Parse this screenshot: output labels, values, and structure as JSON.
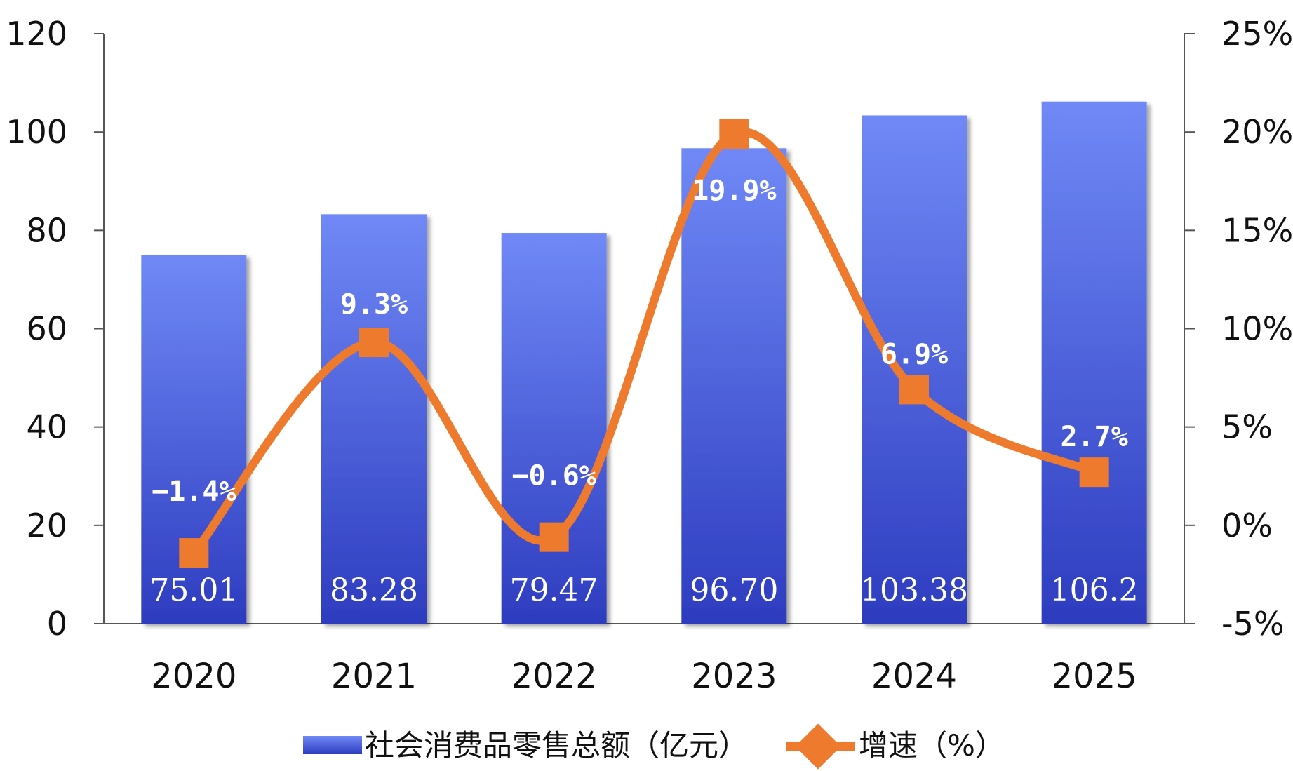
{
  "chart_data": {
    "type": "bar",
    "categories": [
      "2020",
      "2021",
      "2022",
      "2023",
      "2024",
      "2025"
    ],
    "series": [
      {
        "name": "社会消费品零售总额（亿元）",
        "type": "bar",
        "axis": "left",
        "values": [
          75.01,
          83.28,
          79.47,
          96.7,
          103.38,
          106.2
        ],
        "labels": [
          "75.01",
          "83.28",
          "79.47",
          "96.70",
          "103.38",
          "106.2"
        ]
      },
      {
        "name": "增速（%）",
        "type": "line",
        "axis": "right",
        "values": [
          -1.4,
          9.3,
          -0.6,
          19.9,
          6.9,
          2.7
        ],
        "labels": [
          "−1.4%",
          "9.3%",
          "−0.6%",
          "19.9%",
          "6.9%",
          "2.7%"
        ]
      }
    ],
    "y_left": {
      "ylim": [
        0,
        120
      ],
      "ticks": [
        "0",
        "20",
        "40",
        "60",
        "80",
        "100",
        "120"
      ]
    },
    "y_right": {
      "ylim": [
        -5,
        25
      ],
      "ticks": [
        "-5%",
        "0%",
        "5%",
        "10%",
        "15%",
        "20%",
        "25%"
      ]
    },
    "legend": {
      "placement": "bottom"
    },
    "grid": false,
    "colors": {
      "bar_top": "#7089F6",
      "bar_bottom": "#2D3CBF",
      "line": "#EE7B2D",
      "axis": "#555555"
    }
  }
}
